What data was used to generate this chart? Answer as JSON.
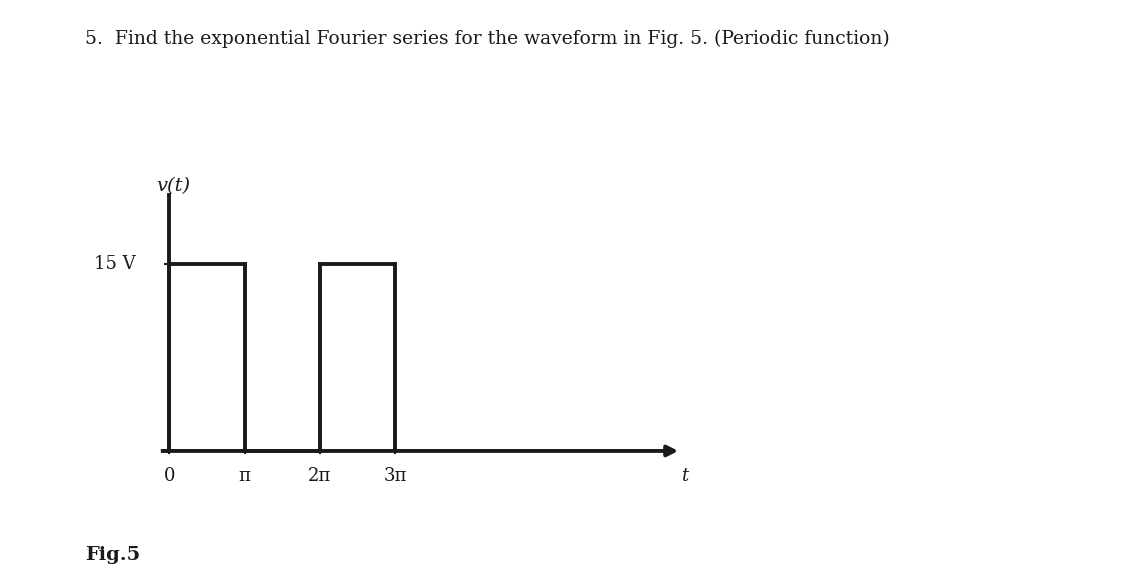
{
  "title": "5.  Find the exponential Fourier series for the waveform in Fig. 5. (Periodic function)",
  "ylabel": "v(t)",
  "xlabel_t": "t",
  "fig_label": "Fig.5",
  "voltage_label": "15 V",
  "pulse1_start": 0,
  "pulse1_end": 1,
  "pulse2_start": 2,
  "pulse2_end": 3,
  "x_ticks": [
    0,
    1,
    2,
    3
  ],
  "x_tick_labels": [
    "0",
    "π",
    "2π",
    "3π"
  ],
  "xlim": [
    -0.3,
    7.2
  ],
  "ylim": [
    -2.5,
    22
  ],
  "background_color": "#ffffff",
  "line_color": "#1a1a1a",
  "line_width": 2.8,
  "title_fontsize": 13.5,
  "label_fontsize": 13,
  "tick_fontsize": 13,
  "figlabel_fontsize": 14,
  "vt_fontsize": 14,
  "voltage_fontsize": 13
}
